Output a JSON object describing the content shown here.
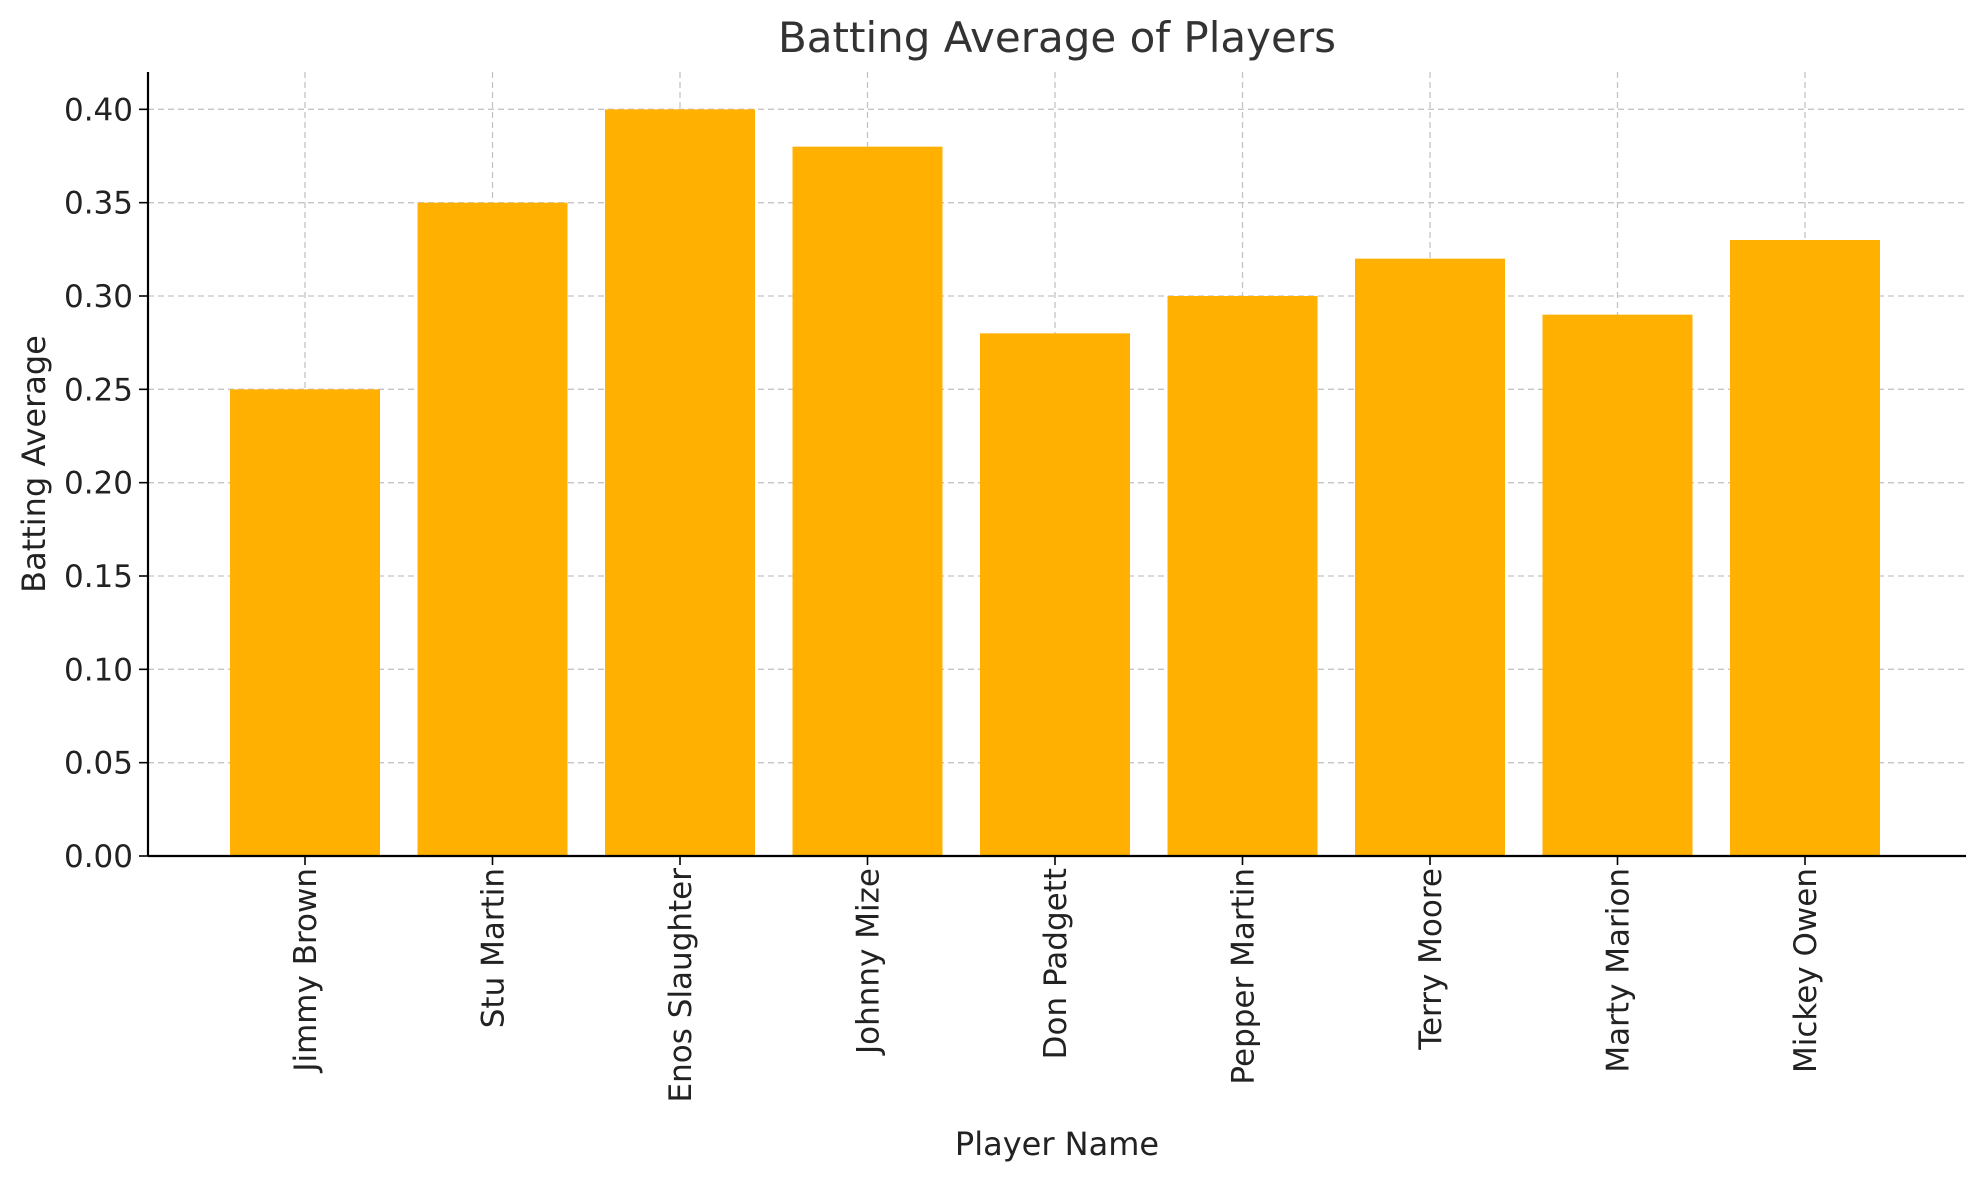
{
  "chart_data": {
    "type": "bar",
    "title": "Batting Average of Players",
    "xlabel": "Player Name",
    "ylabel": "Batting Average",
    "categories": [
      "Jimmy Brown",
      "Stu Martin",
      "Enos Slaughter",
      "Johnny Mize",
      "Don Padgett",
      "Pepper Martin",
      "Terry Moore",
      "Marty Marion",
      "Mickey Owen"
    ],
    "values": [
      0.25,
      0.35,
      0.4,
      0.38,
      0.28,
      0.3,
      0.32,
      0.29,
      0.33
    ],
    "ylim": [
      0,
      0.42
    ],
    "yticks": [
      "0.00",
      "0.05",
      "0.10",
      "0.15",
      "0.20",
      "0.25",
      "0.30",
      "0.35",
      "0.40"
    ],
    "grid": true,
    "bar_color": "#FFB000"
  }
}
